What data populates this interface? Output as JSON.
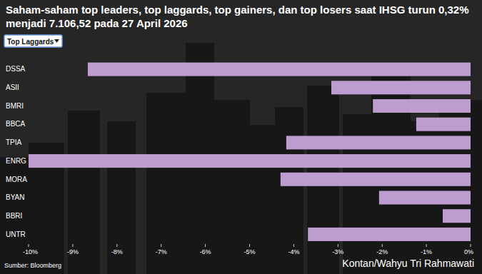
{
  "chart_data": {
    "type": "bar",
    "orientation": "horizontal",
    "title": "Saham-saham top leaders, top laggards, top gainers, dan top losers saat IHSG turun 0,32% menjadi 7.106,52 pada 27 April 2026",
    "dropdown": "Top Laggards",
    "source": "Sumber: Bloomberg",
    "credit": "Kontan/Wahyu Tri Rahmawati",
    "categories": [
      "DSSA",
      "ASII",
      "BMRI",
      "BBCA",
      "TPIA",
      "ENRG",
      "MORA",
      "BYAN",
      "BBRI",
      "UNTR"
    ],
    "values": [
      -8.66,
      -3.15,
      -2.21,
      -1.23,
      -4.17,
      -10,
      -4.3,
      -2.07,
      -0.63,
      -3.68
    ],
    "color": "#c6a3da",
    "xlim": [
      -10,
      0
    ],
    "xticks": [
      {
        "value": -10,
        "label": "-10%"
      },
      {
        "value": -9,
        "label": "-9%"
      },
      {
        "value": -8,
        "label": "-8%"
      },
      {
        "value": -7,
        "label": "-7%"
      },
      {
        "value": -6,
        "label": "-6%"
      },
      {
        "value": -5,
        "label": "-5%"
      },
      {
        "value": -4,
        "label": "-4%"
      },
      {
        "value": -3,
        "label": "-3%"
      },
      {
        "value": -2,
        "label": "-2%"
      },
      {
        "value": -1,
        "label": "-1%"
      },
      {
        "value": 0,
        "label": "0%"
      }
    ],
    "grid": false
  }
}
